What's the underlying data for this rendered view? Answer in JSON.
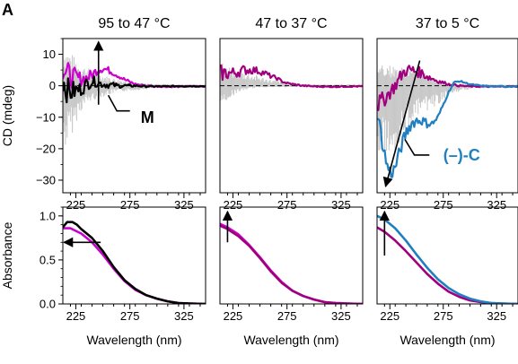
{
  "figure": {
    "panel_label": "A",
    "colors": {
      "magenta": "#cc00cc",
      "purple": "#a0007e",
      "black": "#000000",
      "gray": "#b8b8b8",
      "blue": "#1f7fc0"
    }
  },
  "chart_data": [
    {
      "id": "cd-95-47",
      "type": "line",
      "title": "95 to 47 °C",
      "ylabel": "CD (mdeg)",
      "xlabel": "",
      "xlim": [
        213,
        345
      ],
      "ylim": [
        -34,
        15
      ],
      "xticks": [
        225,
        275,
        325
      ],
      "yticks": [
        10,
        0,
        -10,
        -20,
        -30
      ],
      "ytick_labels": [
        "10",
        "0",
        "−10",
        "−20",
        "−30"
      ],
      "baseline": 0,
      "noise_band": {
        "x": [
          213,
          222,
          228,
          235,
          245,
          255,
          265,
          280,
          300,
          345
        ],
        "upper": [
          13,
          10,
          7,
          6,
          4,
          3,
          2,
          1,
          0.6,
          0.4
        ],
        "lower": [
          -22,
          -15,
          -9,
          -6,
          -4,
          -3,
          -2,
          -1.5,
          -0.8,
          -0.5
        ]
      },
      "series": [
        {
          "color": "#cc00cc",
          "x": [
            213,
            216,
            220,
            225,
            230,
            235,
            240,
            245,
            250,
            255,
            260,
            265,
            270,
            275,
            280,
            290,
            300,
            310,
            320,
            330,
            345
          ],
          "y": [
            6,
            4,
            3,
            2.5,
            2.2,
            2.5,
            3.5,
            5,
            5.5,
            5,
            4,
            3,
            2,
            1.2,
            0.5,
            0,
            -0.2,
            -0.3,
            -0.3,
            -0.2,
            -0.2
          ]
        },
        {
          "color": "#000000",
          "x": [
            213,
            216,
            220,
            225,
            230,
            235,
            240,
            245,
            250,
            255,
            260,
            265,
            270,
            275,
            280,
            290,
            300,
            310,
            320,
            345
          ],
          "y": [
            2,
            -1,
            -2,
            -1.5,
            -1,
            0.5,
            1.5,
            1,
            0.5,
            0.3,
            0.2,
            0,
            0,
            0,
            0,
            -0.2,
            -0.2,
            -0.2,
            -0.1,
            -0.1
          ]
        }
      ],
      "annotations": [
        {
          "text": "M",
          "color": "#000000",
          "x": 285,
          "y": -10,
          "line_from": [
            255,
            -3
          ],
          "line_mid": [
            263,
            -8
          ],
          "line_to": [
            275,
            -8
          ]
        }
      ],
      "arrow": {
        "from": [
          246,
          -6
        ],
        "to": [
          246,
          14
        ]
      }
    },
    {
      "id": "cd-47-37",
      "type": "line",
      "title": "47 to 37 °C",
      "xlim": [
        213,
        345
      ],
      "ylim": [
        -34,
        15
      ],
      "xticks": [
        225,
        275,
        325
      ],
      "baseline": 0,
      "noise_band": {
        "x": [
          213,
          222,
          230,
          240,
          250,
          260,
          275,
          300,
          345
        ],
        "upper": [
          8,
          6,
          5,
          4,
          3,
          2,
          1,
          0.5,
          0.4
        ],
        "lower": [
          -7,
          -4,
          -2,
          -1,
          -0.5,
          -0.5,
          -0.5,
          -0.4,
          -0.4
        ]
      },
      "series": [
        {
          "color": "#a0007e",
          "x": [
            213,
            220,
            225,
            230,
            235,
            240,
            245,
            250,
            255,
            260,
            265,
            270,
            275,
            280,
            290,
            300,
            310,
            320,
            330,
            345
          ],
          "y": [
            4,
            4,
            4,
            4.5,
            5,
            5,
            5,
            4.5,
            4,
            3,
            2.5,
            1.5,
            0.8,
            0.5,
            0,
            -0.2,
            -0.3,
            -0.3,
            -0.2,
            -0.2
          ]
        }
      ]
    },
    {
      "id": "cd-37-5",
      "type": "line",
      "title": "37 to 5 °C",
      "xlim": [
        213,
        345
      ],
      "ylim": [
        -34,
        15
      ],
      "xticks": [
        225,
        275,
        325
      ],
      "baseline": 0,
      "noise_band": {
        "x": [
          213,
          222,
          230,
          240,
          250,
          260,
          270,
          280,
          300,
          345
        ],
        "upper": [
          8,
          7,
          6,
          6,
          5,
          4,
          2,
          1,
          0.5,
          0.4
        ],
        "lower": [
          -20,
          -24,
          -22,
          -15,
          -10,
          -8,
          -6,
          -3,
          -1,
          -0.5
        ]
      },
      "series": [
        {
          "color": "#a0007e",
          "x": [
            213,
            220,
            225,
            230,
            235,
            240,
            245,
            250,
            255,
            260,
            270,
            280,
            290,
            300,
            320,
            345
          ],
          "y": [
            -6,
            -4,
            -2,
            0,
            3,
            5,
            5,
            4.5,
            4,
            3,
            1.5,
            0.5,
            0,
            -0.2,
            -0.3,
            -0.2
          ]
        },
        {
          "color": "#1f7fc0",
          "x": [
            213,
            218,
            222,
            226,
            230,
            235,
            240,
            245,
            250,
            255,
            260,
            265,
            270,
            275,
            280,
            285,
            290,
            295,
            300,
            310,
            320,
            330,
            345
          ],
          "y": [
            -8,
            -18,
            -25,
            -28,
            -26,
            -20,
            -15,
            -12,
            -11,
            -11,
            -12,
            -12,
            -10,
            -6,
            -2,
            1,
            1.5,
            1,
            0.5,
            0,
            -0.2,
            -0.2,
            -0.2
          ]
        }
      ],
      "annotations": [
        {
          "text": "(–)-C",
          "color": "#1f7fc0",
          "x": 275,
          "y": -22,
          "line_from": [
            239,
            -17
          ],
          "line_mid": [
            248,
            -22
          ],
          "line_to": [
            262,
            -22
          ]
        }
      ],
      "arrow": {
        "from": [
          253,
          8
        ],
        "to": [
          221,
          -32
        ]
      }
    },
    {
      "id": "abs-95-47",
      "type": "line",
      "ylabel": "Absorbance",
      "xlabel": "Wavelength (nm)",
      "xlim": [
        213,
        345
      ],
      "ylim": [
        0,
        1.1
      ],
      "xticks": [
        225,
        275,
        325
      ],
      "yticks": [
        1.0,
        0.5,
        0.0
      ],
      "ytick_labels": [
        "1.0",
        "0.5",
        "0.0"
      ],
      "series": [
        {
          "color": "#cc00cc",
          "x": [
            213,
            220,
            230,
            240,
            250,
            260,
            270,
            280,
            290,
            300,
            310,
            320,
            330,
            345
          ],
          "y": [
            0.86,
            0.86,
            0.8,
            0.7,
            0.56,
            0.4,
            0.26,
            0.16,
            0.1,
            0.06,
            0.03,
            0.01,
            0.005,
            0.0
          ]
        },
        {
          "color": "#000000",
          "x": [
            213,
            217,
            222,
            226,
            230,
            240,
            250,
            260,
            270,
            280,
            290,
            300,
            310,
            320,
            330,
            345
          ],
          "y": [
            0.87,
            0.93,
            0.93,
            0.9,
            0.85,
            0.75,
            0.6,
            0.42,
            0.27,
            0.17,
            0.1,
            0.06,
            0.03,
            0.01,
            0.005,
            0.0
          ]
        }
      ],
      "arrow": {
        "from": [
          248,
          0.7
        ],
        "to": [
          214,
          0.7
        ]
      }
    },
    {
      "id": "abs-47-37",
      "type": "line",
      "xlabel": "Wavelength (nm)",
      "xlim": [
        213,
        345
      ],
      "ylim": [
        0,
        1.1
      ],
      "xticks": [
        225,
        275,
        325
      ],
      "series": [
        {
          "color": "#cc00cc",
          "x": [
            213,
            220,
            230,
            240,
            250,
            260,
            270,
            280,
            290,
            300,
            310,
            320,
            330,
            345
          ],
          "y": [
            0.91,
            0.87,
            0.79,
            0.67,
            0.53,
            0.38,
            0.25,
            0.15,
            0.09,
            0.05,
            0.02,
            0.01,
            0.005,
            0.0
          ]
        },
        {
          "color": "#a0007e",
          "x": [
            213,
            220,
            230,
            240,
            250,
            260,
            270,
            280,
            290,
            300,
            310,
            320,
            330,
            345
          ],
          "y": [
            0.89,
            0.85,
            0.77,
            0.66,
            0.52,
            0.37,
            0.24,
            0.15,
            0.09,
            0.05,
            0.02,
            0.01,
            0.005,
            0.0
          ]
        }
      ],
      "arrow": {
        "from": [
          220,
          0.7
        ],
        "to": [
          220,
          1.05
        ]
      }
    },
    {
      "id": "abs-37-5",
      "type": "line",
      "xlabel": "Wavelength (nm)",
      "xlim": [
        213,
        345
      ],
      "ylim": [
        0,
        1.1
      ],
      "xticks": [
        225,
        275,
        325
      ],
      "series": [
        {
          "color": "#a0007e",
          "x": [
            213,
            220,
            230,
            240,
            250,
            260,
            270,
            280,
            290,
            300,
            310,
            320,
            330,
            345
          ],
          "y": [
            0.87,
            0.82,
            0.72,
            0.6,
            0.47,
            0.34,
            0.23,
            0.14,
            0.08,
            0.04,
            0.02,
            0.01,
            0.005,
            0.0
          ]
        },
        {
          "color": "#1f7fc0",
          "x": [
            213,
            220,
            230,
            240,
            250,
            260,
            270,
            280,
            290,
            300,
            310,
            320,
            330,
            345
          ],
          "y": [
            1.0,
            0.96,
            0.86,
            0.72,
            0.56,
            0.41,
            0.28,
            0.18,
            0.11,
            0.06,
            0.03,
            0.01,
            0.005,
            0.0
          ]
        }
      ],
      "arrow": {
        "from": [
          220,
          0.55
        ],
        "to": [
          220,
          1.05
        ]
      }
    }
  ]
}
